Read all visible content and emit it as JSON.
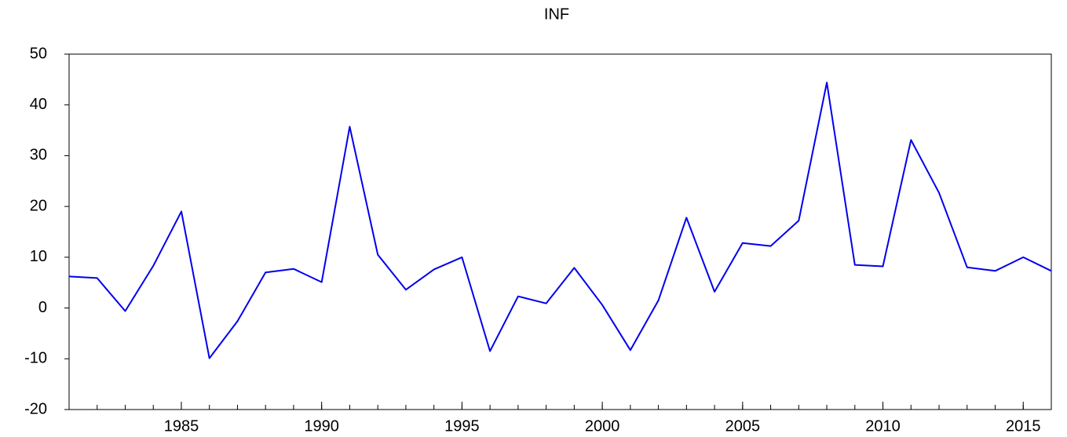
{
  "chart_data": {
    "type": "line",
    "title": "INF",
    "x": [
      1981,
      1982,
      1983,
      1984,
      1985,
      1986,
      1987,
      1988,
      1989,
      1990,
      1991,
      1992,
      1993,
      1994,
      1995,
      1996,
      1997,
      1998,
      1999,
      2000,
      2001,
      2002,
      2003,
      2004,
      2005,
      2006,
      2007,
      2008,
      2009,
      2010,
      2011,
      2012,
      2013,
      2014,
      2015,
      2016
    ],
    "series": [
      {
        "name": "INF",
        "color": "#0000ee",
        "values": [
          6.2,
          5.9,
          -0.6,
          8.3,
          19.0,
          -9.9,
          -2.6,
          7.0,
          7.7,
          5.1,
          35.7,
          10.5,
          3.6,
          7.6,
          10.0,
          -8.5,
          2.3,
          0.9,
          7.9,
          0.6,
          -8.3,
          1.5,
          17.8,
          3.2,
          12.8,
          12.2,
          17.2,
          44.4,
          8.5,
          8.2,
          33.1,
          22.7,
          8.0,
          7.3,
          10.0,
          7.3
        ]
      }
    ],
    "xlim": [
      1981,
      2016
    ],
    "xticks": [
      1985,
      1990,
      1995,
      2000,
      2005,
      2010,
      2015
    ],
    "ylim": [
      -20,
      50
    ],
    "yticks": [
      -20,
      -10,
      0,
      10,
      20,
      30,
      40,
      50
    ],
    "grid": false
  }
}
